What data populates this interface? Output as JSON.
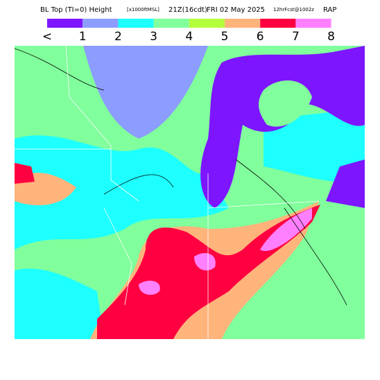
{
  "header": {
    "title": "BL Top (TI=0) Height",
    "units": "[x1000ftMSL]",
    "time": "21Z(16cdt)",
    "date": "FRI 02 May 2025",
    "forecast": "12hrFcst@1002z",
    "model": "RAP"
  },
  "legend": {
    "colors": [
      "#7d16ff",
      "#8c9cff",
      "#1effff",
      "#80ff9c",
      "#b4ff3c",
      "#ffb47c",
      "#ff0040",
      "#ff80ff"
    ],
    "labels": [
      "<",
      "1",
      "2",
      "3",
      "4",
      "5",
      "6",
      "7",
      "8"
    ]
  }
}
